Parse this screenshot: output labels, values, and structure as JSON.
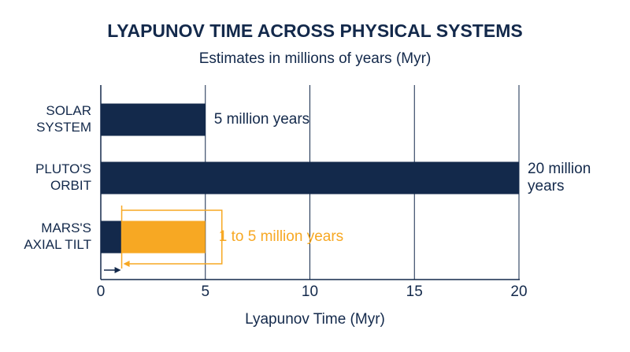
{
  "chart_data": {
    "type": "bar",
    "orientation": "horizontal",
    "title": "LYAPUNOV TIME ACROSS PHYSICAL SYSTEMS",
    "subtitle": "Estimates in millions of years (Myr)",
    "x_label": "Lyapunov Time (Myr)",
    "categories": [
      [
        "SOLAR",
        "SYSTEM"
      ],
      [
        "PLUTO'S",
        "ORBIT"
      ],
      [
        "MARS'S",
        "AXIAL TILT"
      ]
    ],
    "series": [
      {
        "color": "#13294b",
        "values": [
          5,
          20,
          1
        ],
        "value_labels": [
          [
            "5 million years"
          ],
          [
            "20 million",
            "years"
          ],
          null
        ]
      }
    ],
    "range": {
      "index": 2,
      "low": 1,
      "high": 5,
      "color": "#f7a823",
      "label": "1 to 5 million years"
    },
    "xlim": [
      0,
      20
    ],
    "xticks": [
      0,
      5,
      10,
      15,
      20
    ],
    "grid": true
  }
}
